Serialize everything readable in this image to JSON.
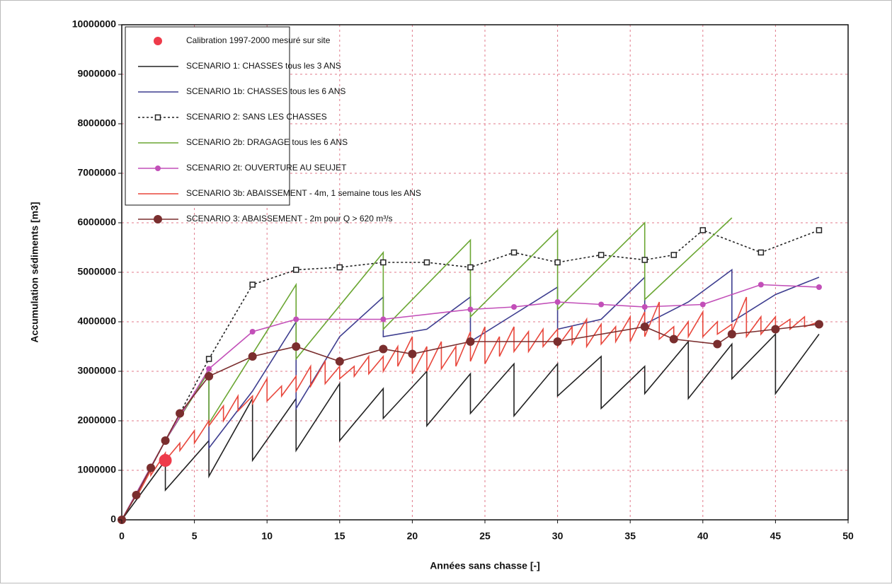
{
  "chart_data": {
    "type": "line",
    "xlabel": "Années sans chasse [-]",
    "ylabel": "Accumulation sédiments [m3]",
    "xlim": [
      0,
      50
    ],
    "xticks": [
      0,
      5,
      10,
      15,
      20,
      25,
      30,
      35,
      40,
      45,
      50
    ],
    "ylim": [
      0,
      10000000
    ],
    "yticks": [
      0,
      1000000,
      2000000,
      3000000,
      4000000,
      5000000,
      6000000,
      7000000,
      8000000,
      9000000,
      10000000
    ],
    "grid": true,
    "grid_color": "#e07a8a",
    "legend": "upper left",
    "series": [
      {
        "name": "Calibration 1997-2000 mesuré sur site",
        "color": "#ee3b4a",
        "line": false,
        "marker": "disc",
        "x": [
          3
        ],
        "values": [
          1200000
        ]
      },
      {
        "name": "SCENARIO 1:   CHASSES tous les 3 ANS",
        "color": "#222222",
        "line": true,
        "dash": false,
        "marker": "none",
        "x": [
          0,
          3,
          3,
          6,
          6,
          9,
          9,
          12,
          12,
          15,
          15,
          18,
          18,
          21,
          21,
          24,
          24,
          27,
          27,
          30,
          30,
          33,
          33,
          36,
          36,
          39,
          39,
          42,
          42,
          45,
          45,
          48
        ],
        "values": [
          0,
          1200000,
          600000,
          1600000,
          880000,
          2450000,
          1200000,
          2450000,
          1400000,
          2750000,
          1600000,
          2650000,
          2050000,
          3000000,
          1900000,
          2950000,
          2150000,
          3150000,
          2100000,
          3150000,
          2500000,
          3300000,
          2250000,
          3100000,
          2550000,
          3600000,
          2450000,
          3550000,
          2850000,
          3750000,
          2550000,
          3750000
        ]
      },
      {
        "name": "SCENARIO 1b: CHASSES tous les 6 ANS",
        "color": "#3d3d8f",
        "line": true,
        "dash": false,
        "marker": "none",
        "x": [
          0,
          3,
          6,
          6,
          9,
          12,
          12,
          15,
          18,
          18,
          21,
          24,
          24,
          27,
          30,
          30,
          33,
          36,
          36,
          39,
          42,
          42,
          45,
          48
        ],
        "values": [
          0,
          1600000,
          3000000,
          1450000,
          2600000,
          4000000,
          2250000,
          3700000,
          4500000,
          3700000,
          3850000,
          4500000,
          3600000,
          4150000,
          4700000,
          3850000,
          4050000,
          4900000,
          3950000,
          4400000,
          5050000,
          4000000,
          4550000,
          4900000
        ]
      },
      {
        "name": "SCENARIO 2:  SANS LES CHASSES",
        "color": "#222222",
        "line": true,
        "dash": true,
        "marker": "square",
        "x": [
          0,
          1,
          2,
          3,
          4,
          6,
          9,
          12,
          15,
          18,
          21,
          24,
          27,
          30,
          33,
          36,
          38,
          40,
          44,
          48
        ],
        "values": [
          0,
          500000,
          1050000,
          1600000,
          2150000,
          3250000,
          4750000,
          5050000,
          5100000,
          5200000,
          5200000,
          5100000,
          5400000,
          5200000,
          5350000,
          5250000,
          5350000,
          5850000,
          5400000,
          5850000
        ]
      },
      {
        "name": "SCENARIO 2b: DRAGAGE tous les 6 ANS",
        "color": "#6aa632",
        "line": true,
        "dash": false,
        "marker": "none",
        "x": [
          0,
          3,
          6,
          6,
          12,
          12,
          18,
          18,
          24,
          24,
          30,
          30,
          36,
          36,
          42
        ],
        "values": [
          0,
          1600000,
          3000000,
          1950000,
          4750000,
          3250000,
          5400000,
          3850000,
          5650000,
          4100000,
          5850000,
          4250000,
          6000000,
          4450000,
          6100000
        ]
      },
      {
        "name": "SCENARIO 2t:   OUVERTURE AU SEUJET",
        "color": "#c24fb8",
        "line": true,
        "dash": false,
        "marker": "circle",
        "x": [
          0,
          3,
          6,
          9,
          12,
          18,
          24,
          27,
          30,
          33,
          36,
          40,
          44,
          48
        ],
        "values": [
          0,
          1600000,
          3050000,
          3800000,
          4050000,
          4050000,
          4250000,
          4300000,
          4400000,
          4350000,
          4300000,
          4350000,
          4750000,
          4700000
        ]
      },
      {
        "name": "SCENARIO 3b: ABAISSEMENT - 4m, 1 semaine tous les ANS",
        "color": "#e8473c",
        "line": true,
        "dash": false,
        "marker": "none",
        "x": [
          0,
          1,
          1,
          2,
          2,
          3,
          3,
          4,
          4,
          5,
          5,
          6,
          6,
          7,
          7,
          8,
          8,
          9,
          9,
          10,
          10,
          11,
          11,
          12,
          12,
          13,
          13,
          14,
          14,
          15,
          15,
          16,
          16,
          17,
          17,
          18,
          18,
          19,
          19,
          20,
          20,
          21,
          21,
          22,
          22,
          23,
          23,
          24,
          24,
          25,
          25,
          26,
          26,
          27,
          27,
          28,
          28,
          29,
          29,
          30,
          30,
          31,
          31,
          32,
          32,
          33,
          33,
          34,
          34,
          35,
          35,
          36,
          36,
          37,
          37,
          38,
          38,
          39,
          39,
          40,
          40,
          41,
          41,
          42,
          42,
          43,
          43,
          44,
          44,
          45,
          45,
          46,
          46,
          47,
          47,
          48
        ],
        "values": [
          0,
          500000,
          450000,
          1000000,
          900000,
          1350000,
          1200000,
          1550000,
          1400000,
          1800000,
          1550000,
          2000000,
          1900000,
          2300000,
          2000000,
          2500000,
          2200000,
          2500000,
          2350000,
          2850000,
          2400000,
          2700000,
          2500000,
          2900000,
          2600000,
          3100000,
          2700000,
          3200000,
          2750000,
          3100000,
          2850000,
          3100000,
          2900000,
          3300000,
          2950000,
          3300000,
          3000000,
          3500000,
          3100000,
          3700000,
          2950000,
          3500000,
          3000000,
          3600000,
          3050000,
          3500000,
          3100000,
          3800000,
          3200000,
          3900000,
          3150000,
          3700000,
          3300000,
          3900000,
          3400000,
          3800000,
          3400000,
          3850000,
          3500000,
          3850000,
          3500000,
          3900000,
          3550000,
          4050000,
          3500000,
          3950000,
          3550000,
          3900000,
          3600000,
          4100000,
          3600000,
          4200000,
          3700000,
          4400000,
          3650000,
          3900000,
          3600000,
          4000000,
          3700000,
          4200000,
          3700000,
          4000000,
          3750000,
          3950000,
          3800000,
          4500000,
          3700000,
          4100000,
          3750000,
          4100000,
          3850000,
          4050000,
          3850000,
          4100000,
          3900000,
          4000000
        ]
      },
      {
        "name": "SCENARIO 3:  ABAISSEMENT - 2m pour Q > 620 m³/s",
        "color": "#7a2e2e",
        "line": true,
        "dash": false,
        "marker": "bigcircle",
        "x": [
          0,
          1,
          2,
          3,
          4,
          6,
          9,
          12,
          15,
          18,
          20,
          24,
          30,
          36,
          38,
          41,
          42,
          45,
          48
        ],
        "values": [
          0,
          500000,
          1050000,
          1600000,
          2150000,
          2900000,
          3300000,
          3500000,
          3200000,
          3450000,
          3350000,
          3600000,
          3600000,
          3900000,
          3650000,
          3550000,
          3750000,
          3850000,
          3950000
        ]
      }
    ]
  }
}
